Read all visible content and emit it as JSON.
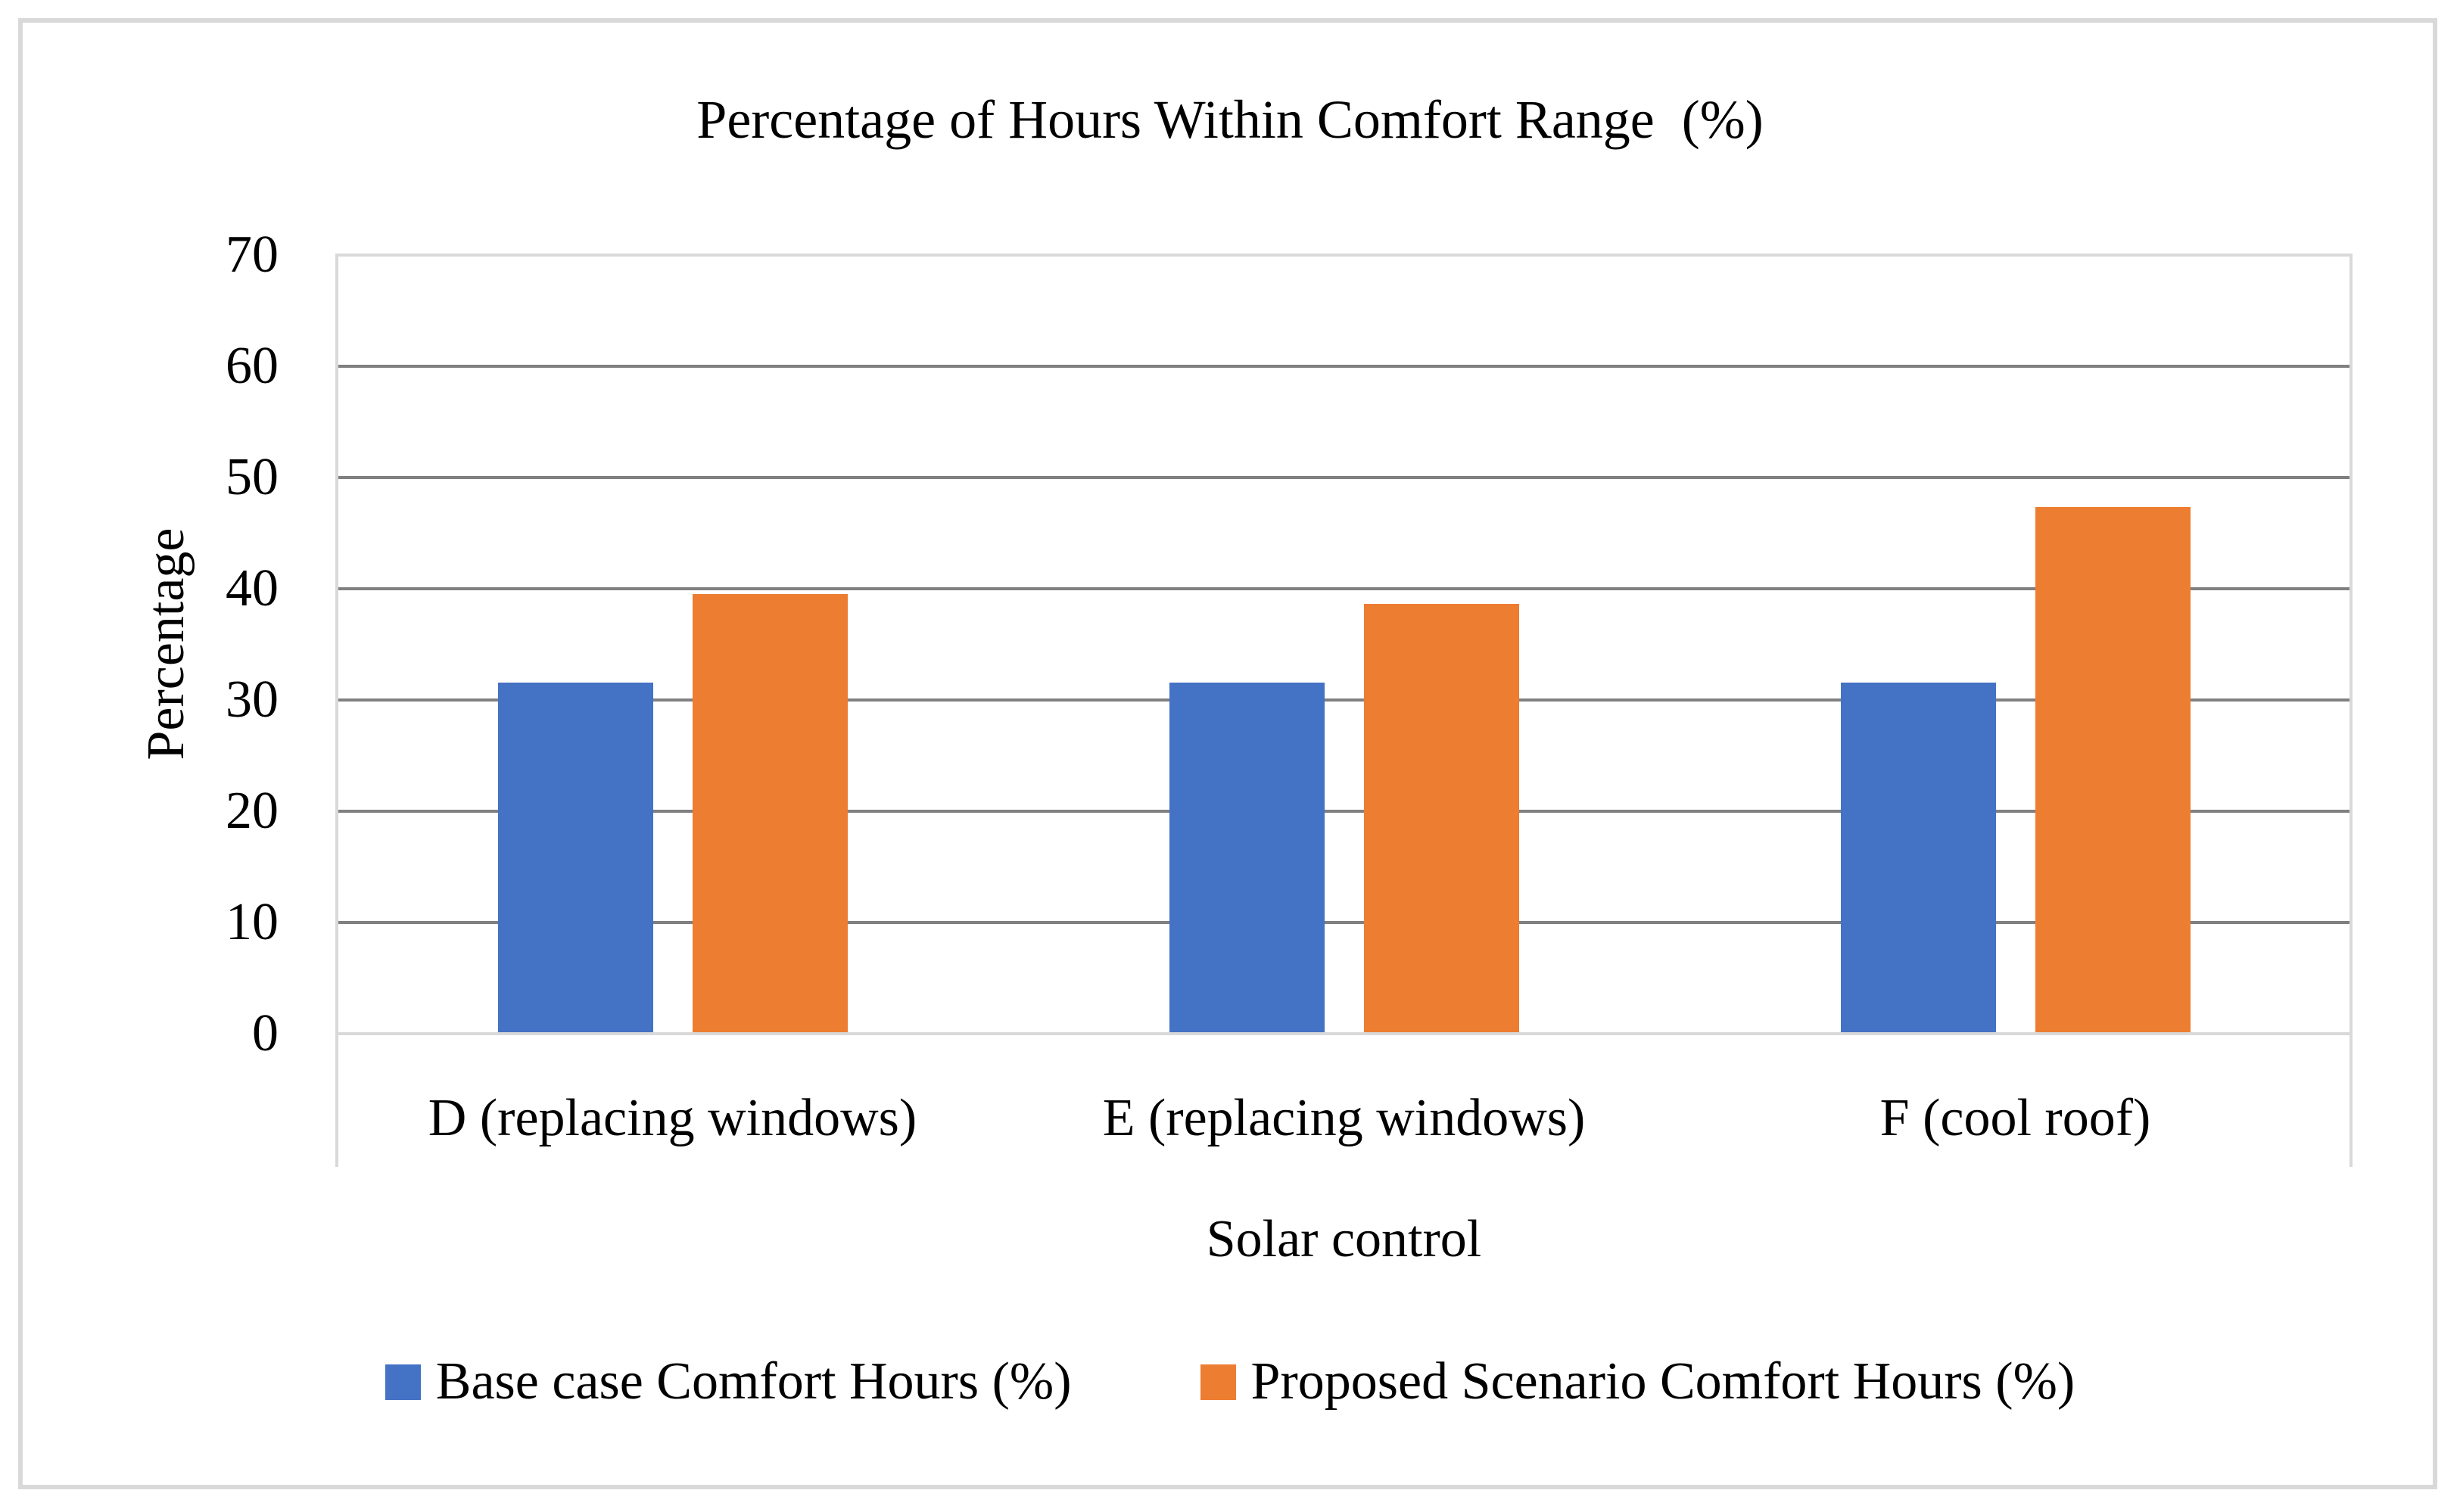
{
  "chart_data": {
    "type": "bar",
    "title": "Percentage of Hours Within Comfort Range  (%)",
    "categories": [
      "D (replacing windows)",
      "E (replacing windows)",
      "F (cool roof)"
    ],
    "series": [
      {
        "name": "Base case Comfort Hours (%)",
        "color": "#4472C4",
        "values": [
          31.4,
          31.4,
          31.4
        ]
      },
      {
        "name": "Proposed Scenario Comfort Hours (%)",
        "color": "#ED7D31",
        "values": [
          39.4,
          38.5,
          47.2
        ]
      }
    ],
    "xlabel": "Solar control",
    "ylabel": "Percentage",
    "ylim": [
      0,
      70
    ],
    "yticks": [
      70,
      60,
      50,
      40,
      30,
      20,
      10,
      0
    ],
    "grid": "horizontal-major",
    "legend_position": "bottom"
  },
  "colors": {
    "series_blue": "#4472C4",
    "series_orange": "#ED7D31",
    "gridline": "#808080",
    "axis_line": "#D9D9D9",
    "chart_border": "#D9D9D9",
    "text": "#000000",
    "background": "#FFFFFF"
  }
}
